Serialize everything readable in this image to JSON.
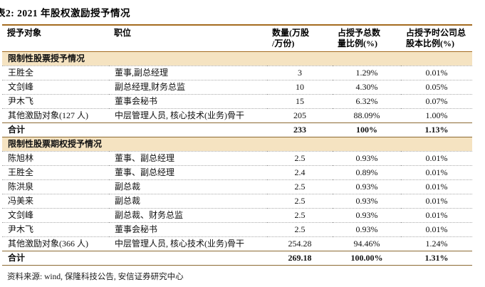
{
  "title": "表2: 2021 年股权激励授予情况",
  "table": {
    "headers": {
      "recipient": "授予对象",
      "position": "职位",
      "quantity": "数量(万股\n/万份)",
      "pct_of_total_granted": "占授予总数\n量比例(%)",
      "pct_of_share_capital": "占授予时公司总\n股本比例(%)"
    },
    "sections": [
      {
        "label": "限制性股票授予情况",
        "rows": [
          {
            "recipient": "王胜全",
            "position": "董事,副总经理",
            "quantity": "3",
            "pct_of_total_granted": "1.29%",
            "pct_of_share_capital": "0.01%"
          },
          {
            "recipient": "文剑峰",
            "position": "副总经理,财务总监",
            "quantity": "10",
            "pct_of_total_granted": "4.30%",
            "pct_of_share_capital": "0.05%"
          },
          {
            "recipient": "尹木飞",
            "position": "董事会秘书",
            "quantity": "15",
            "pct_of_total_granted": "6.32%",
            "pct_of_share_capital": "0.07%"
          },
          {
            "recipient": "其他激励对象(127 人)",
            "position": "中层管理人员, 核心技术(业务)骨干",
            "quantity": "205",
            "pct_of_total_granted": "88.09%",
            "pct_of_share_capital": "1.00%"
          }
        ],
        "total": {
          "recipient": "合计",
          "position": "",
          "quantity": "233",
          "pct_of_total_granted": "100%",
          "pct_of_share_capital": "1.13%"
        }
      },
      {
        "label": "限制性股票期权授予情况",
        "rows": [
          {
            "recipient": "陈旭林",
            "position": "董事、副总经理",
            "quantity": "2.5",
            "pct_of_total_granted": "0.93%",
            "pct_of_share_capital": "0.01%"
          },
          {
            "recipient": "王胜全",
            "position": "董事、副总经理",
            "quantity": "2.4",
            "pct_of_total_granted": "0.89%",
            "pct_of_share_capital": "0.01%"
          },
          {
            "recipient": "陈洪泉",
            "position": "副总裁",
            "quantity": "2.5",
            "pct_of_total_granted": "0.93%",
            "pct_of_share_capital": "0.01%"
          },
          {
            "recipient": "冯美来",
            "position": "副总裁",
            "quantity": "2.5",
            "pct_of_total_granted": "0.93%",
            "pct_of_share_capital": "0.01%"
          },
          {
            "recipient": "文剑峰",
            "position": "副总裁、财务总监",
            "quantity": "2.5",
            "pct_of_total_granted": "0.93%",
            "pct_of_share_capital": "0.01%"
          },
          {
            "recipient": "尹木飞",
            "position": "董事会秘书",
            "quantity": "2.5",
            "pct_of_total_granted": "0.93%",
            "pct_of_share_capital": "0.01%"
          },
          {
            "recipient": "其他激励对象(366 人)",
            "position": "中层管理人员, 核心技术(业务)骨干",
            "quantity": "254.28",
            "pct_of_total_granted": "94.46%",
            "pct_of_share_capital": "1.24%"
          }
        ],
        "total": {
          "recipient": "合计",
          "position": "",
          "quantity": "269.18",
          "pct_of_total_granted": "100.00%",
          "pct_of_share_capital": "1.31%"
        }
      }
    ]
  },
  "footer": {
    "source": "资料来源: wind, 保隆科技公告, 安信证券研究中心"
  },
  "colors": {
    "accent_rule": "#a46b1f",
    "section_background": "#f5e3c1",
    "total_rule": "#8c6a33",
    "row_divider": "#a9a9a9",
    "text": "#111111"
  }
}
